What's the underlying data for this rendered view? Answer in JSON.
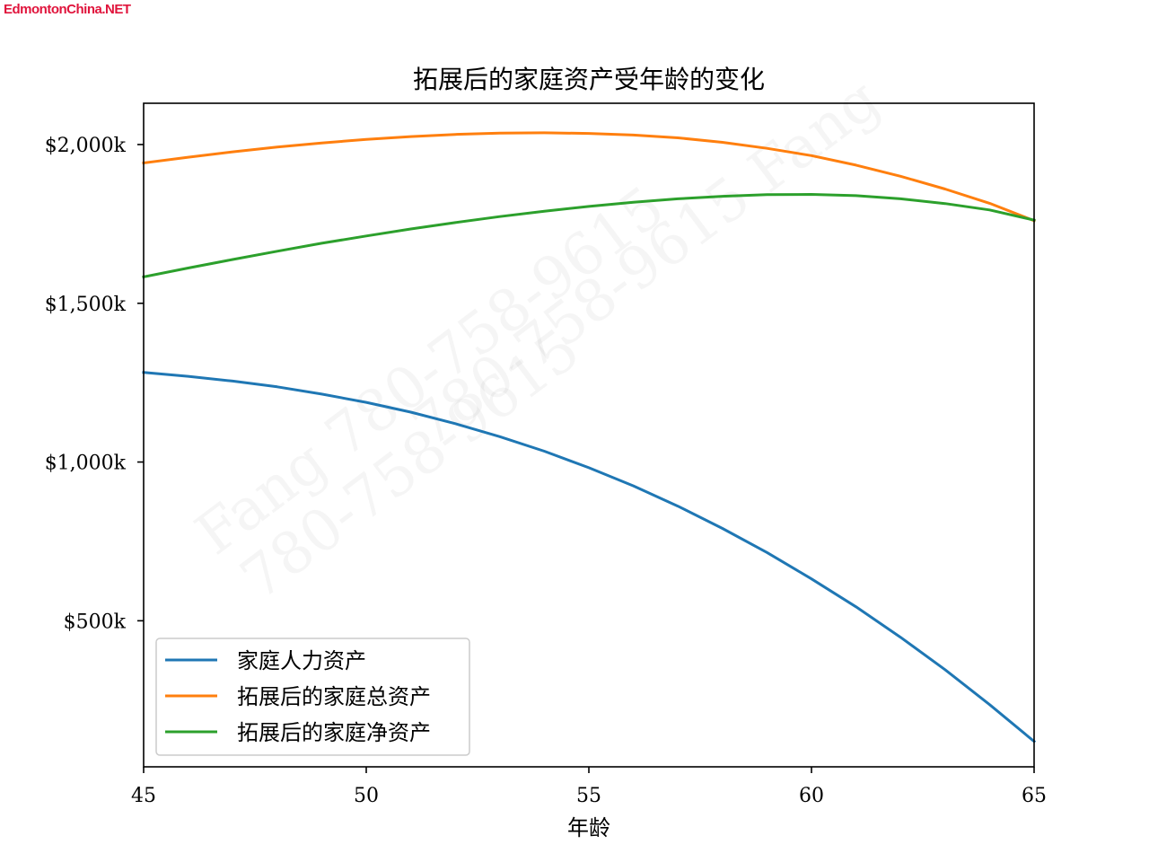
{
  "site_logo": "EdmontonChina.NET",
  "watermark": {
    "lines": [
      "780-758-9615  Fang",
      "Fang  780-758-9615",
      "780-758-9615"
    ]
  },
  "chart_data": {
    "type": "line",
    "title": "拓展后的家庭资产受年龄的变化",
    "xlabel": "年龄",
    "ylabel": "",
    "xlim": [
      45,
      65
    ],
    "ylim": [
      40,
      2130
    ],
    "x_ticks": [
      45,
      50,
      55,
      60,
      65
    ],
    "y_ticks": [
      500,
      1000,
      1500,
      2000
    ],
    "y_tick_labels": [
      "$500k",
      "$1,000k",
      "$1,500k",
      "$2,000k"
    ],
    "x": [
      45,
      46,
      47,
      48,
      49,
      50,
      51,
      52,
      53,
      54,
      55,
      56,
      57,
      58,
      59,
      60,
      61,
      62,
      63,
      64,
      65
    ],
    "grid": false,
    "legend_position": "lower-left",
    "series": [
      {
        "name": "家庭人力资产",
        "color": "#1f77b4",
        "values": [
          1282,
          1270,
          1255,
          1237,
          1214,
          1188,
          1157,
          1121,
          1080,
          1034,
          982,
          925,
          861,
          791,
          715,
          632,
          544,
          448,
          346,
          236,
          120
        ]
      },
      {
        "name": "拓展后的家庭总资产",
        "color": "#ff7f0e",
        "values": [
          1942,
          1960,
          1977,
          1992,
          2005,
          2016,
          2025,
          2032,
          2036,
          2037,
          2035,
          2030,
          2021,
          2007,
          1988,
          1965,
          1935,
          1900,
          1860,
          1815,
          1760
        ]
      },
      {
        "name": "拓展后的家庭净资产",
        "color": "#2ca02c",
        "values": [
          1583,
          1611,
          1638,
          1664,
          1689,
          1712,
          1734,
          1754,
          1773,
          1790,
          1805,
          1818,
          1829,
          1837,
          1842,
          1843,
          1839,
          1829,
          1814,
          1794,
          1762
        ]
      }
    ]
  }
}
